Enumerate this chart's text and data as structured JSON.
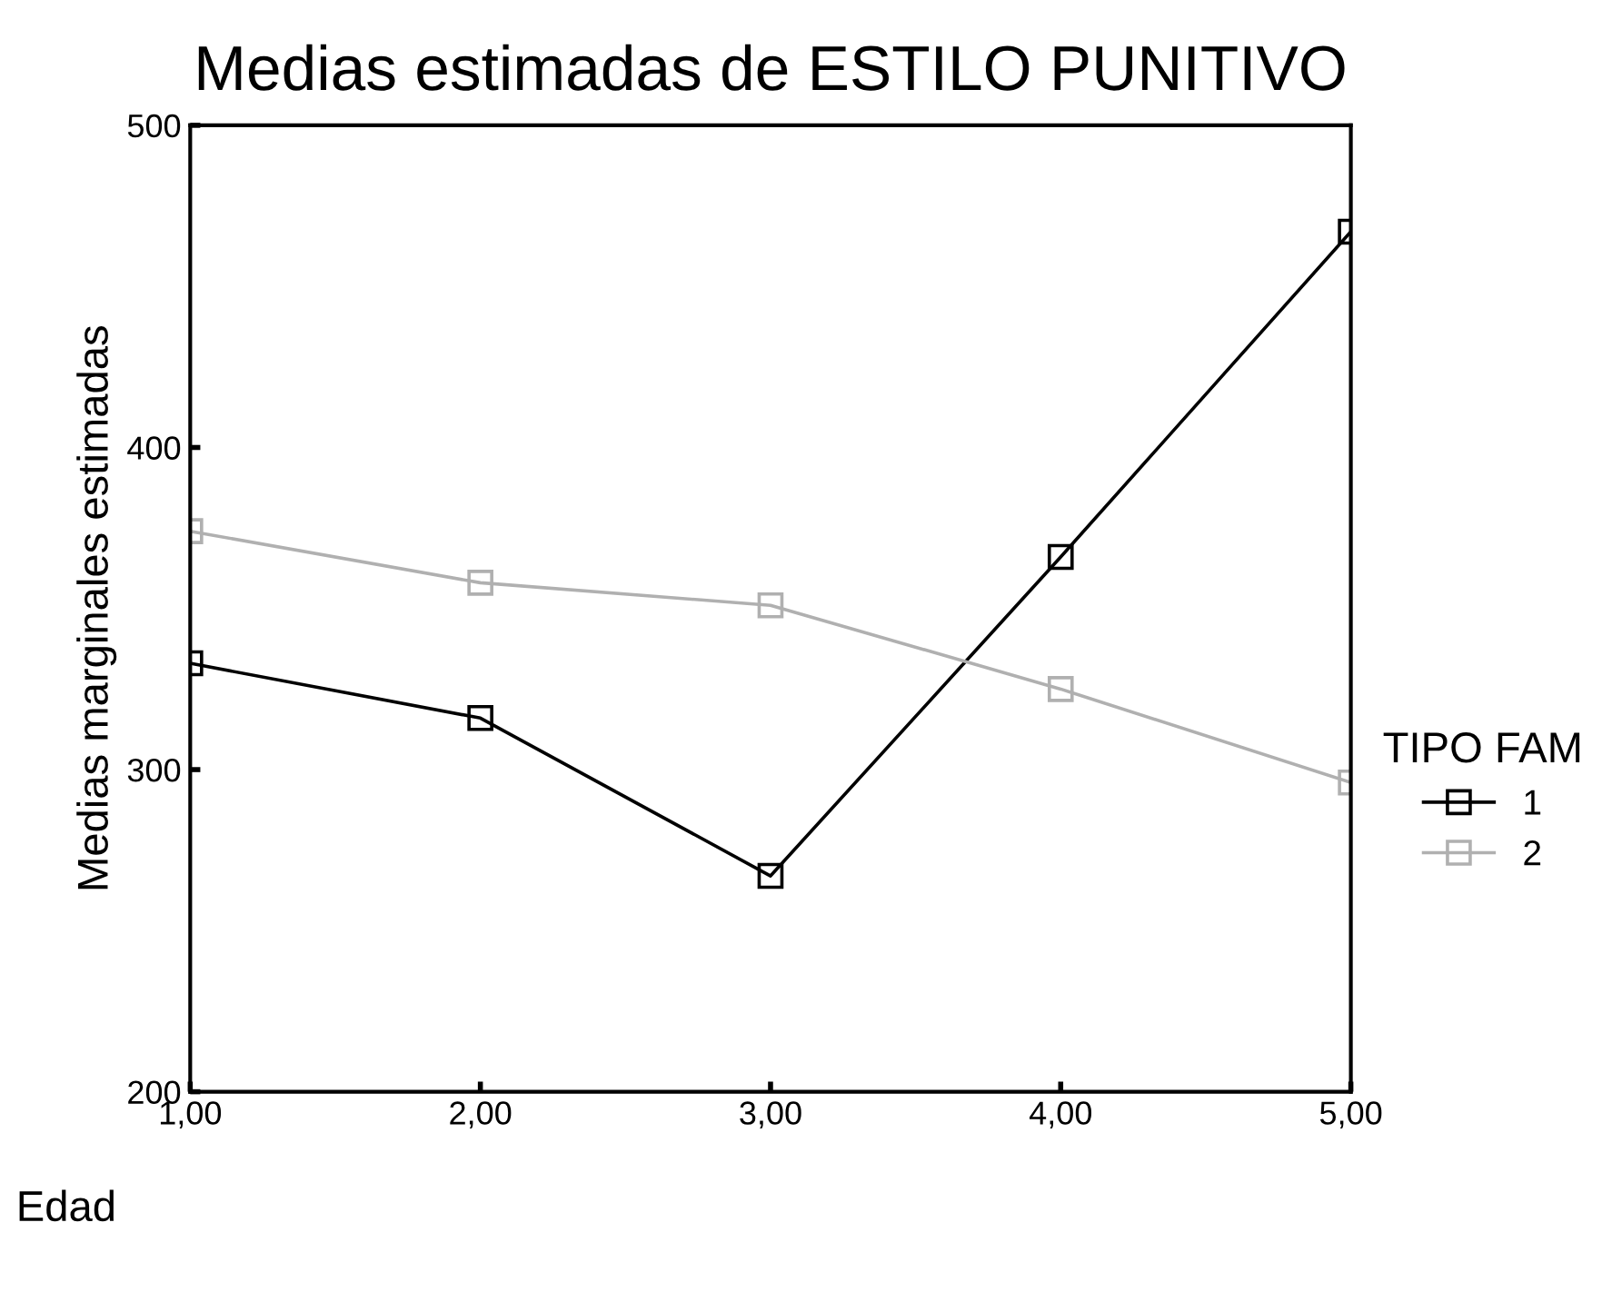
{
  "chart_data": {
    "type": "line",
    "title": "Medias estimadas de ESTILO PUNITIVO",
    "xlabel": "Edad",
    "ylabel": "Medias marginales estimadas",
    "legend_title": "TIPO FAM",
    "x": [
      1,
      2,
      3,
      4,
      5
    ],
    "xlim": [
      1,
      5
    ],
    "xticks": [
      {
        "value": 1,
        "label": "1,00"
      },
      {
        "value": 2,
        "label": "2,00"
      },
      {
        "value": 3,
        "label": "3,00"
      },
      {
        "value": 4,
        "label": "4,00"
      },
      {
        "value": 5,
        "label": "5,00"
      }
    ],
    "ylim": [
      200,
      500
    ],
    "yticks": [
      200,
      300,
      400,
      500
    ],
    "marker": "square",
    "line_style": "solid",
    "grid": false,
    "legend": "right",
    "series": [
      {
        "name": "1",
        "color": "#000000",
        "values": [
          333,
          316,
          267,
          366,
          467
        ]
      },
      {
        "name": "2",
        "color": "#b0b0b0",
        "values": [
          374,
          358,
          351,
          325,
          296
        ]
      }
    ]
  }
}
